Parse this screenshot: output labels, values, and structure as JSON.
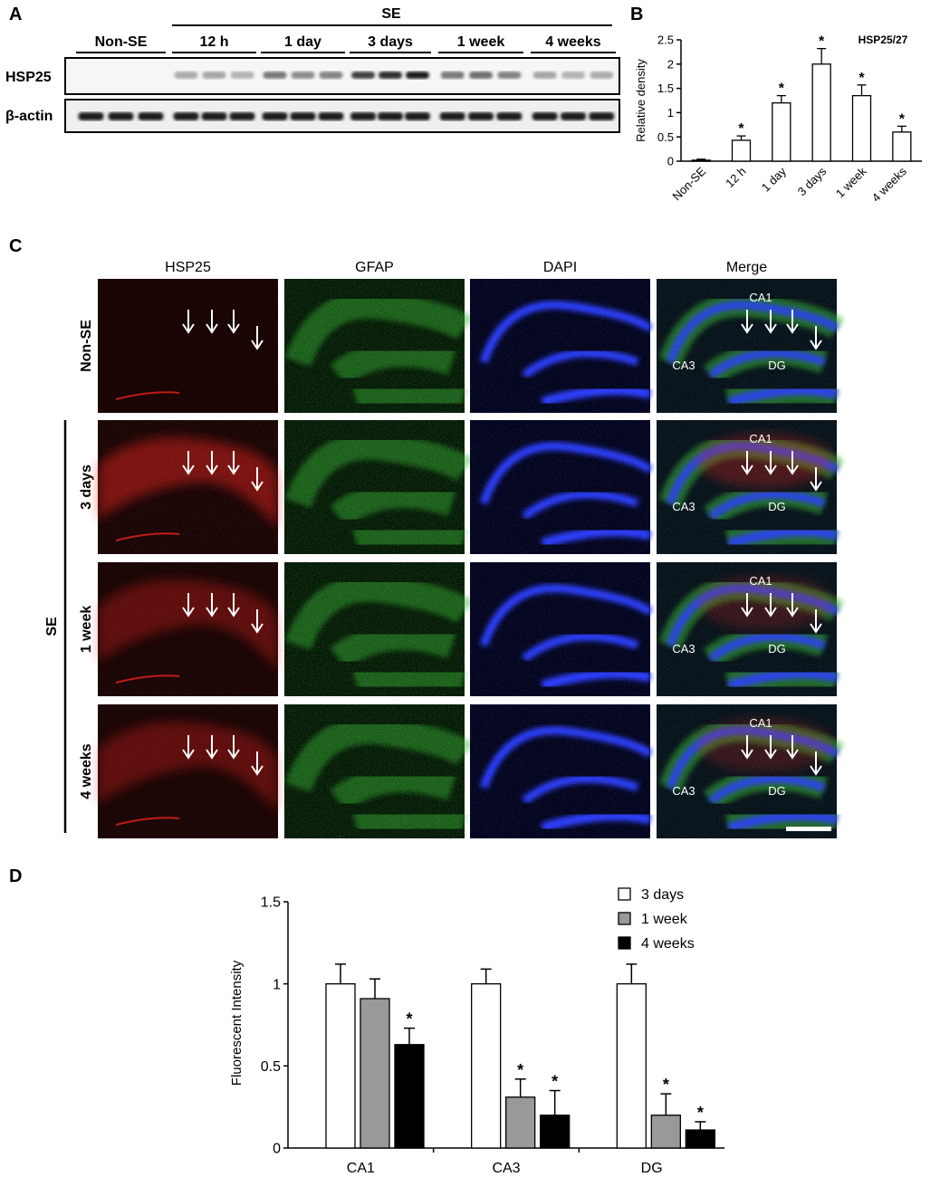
{
  "panels": {
    "A": "A",
    "B": "B",
    "C": "C",
    "D": "D"
  },
  "blot": {
    "se_label": "SE",
    "groups": [
      "Non-SE",
      "12 h",
      "1 day",
      "3 days",
      "1 week",
      "4 weeks"
    ],
    "rows": [
      "HSP25",
      "β-actin"
    ],
    "hsp25_band_intensity": [
      0.0,
      0.35,
      0.55,
      0.95,
      0.6,
      0.35
    ]
  },
  "chart_data": [
    {
      "type": "bar",
      "panel": "B",
      "title": "HSP25/27",
      "xlabel": "",
      "ylabel": "Relative density",
      "categories": [
        "Non-SE",
        "12 h",
        "1 day",
        "3 days",
        "1 week",
        "4 weeks"
      ],
      "values": [
        0.02,
        0.43,
        1.2,
        2.0,
        1.35,
        0.6
      ],
      "errors": [
        0.02,
        0.09,
        0.15,
        0.32,
        0.22,
        0.12
      ],
      "significance": [
        "",
        "*",
        "*",
        "*",
        "*",
        "*"
      ],
      "ylim": [
        0,
        2.5
      ],
      "yticks": [
        "0",
        "0.5",
        "1",
        "1.5",
        "2",
        "2.5"
      ]
    },
    {
      "type": "bar",
      "panel": "D",
      "title": "",
      "xlabel": "",
      "ylabel": "Fluorescent Intensity",
      "categories": [
        "CA1",
        "CA3",
        "DG"
      ],
      "series": [
        {
          "name": "3 days",
          "values": [
            1.0,
            1.0,
            1.0
          ],
          "errors": [
            0.12,
            0.09,
            0.12
          ],
          "significance": [
            "",
            "",
            ""
          ],
          "color": "#ffffff"
        },
        {
          "name": "1 week",
          "values": [
            0.91,
            0.31,
            0.2
          ],
          "errors": [
            0.12,
            0.11,
            0.13
          ],
          "significance": [
            "",
            "*",
            "*"
          ],
          "color": "#999999"
        },
        {
          "name": "4 weeks",
          "values": [
            0.63,
            0.2,
            0.11
          ],
          "errors": [
            0.1,
            0.15,
            0.05
          ],
          "significance": [
            "*",
            "*",
            "*"
          ],
          "color": "#000000"
        }
      ],
      "ylim": [
        0,
        1.5
      ],
      "yticks": [
        "0",
        "0.5",
        "1",
        "1.5"
      ],
      "legend": "top-right"
    }
  ],
  "micrographs": {
    "columns": [
      "HSP25",
      "GFAP",
      "DAPI",
      "Merge"
    ],
    "rows": [
      "Non-SE",
      "3 days",
      "1 week",
      "4 weeks"
    ],
    "se_label": "SE",
    "region_labels": [
      "CA1",
      "CA3",
      "DG"
    ],
    "colors": {
      "HSP25": "#e8201a",
      "GFAP": "#34b331",
      "DAPI": "#2a3cff"
    },
    "hsp25_intensity": [
      0.05,
      0.85,
      0.6,
      0.6
    ]
  }
}
